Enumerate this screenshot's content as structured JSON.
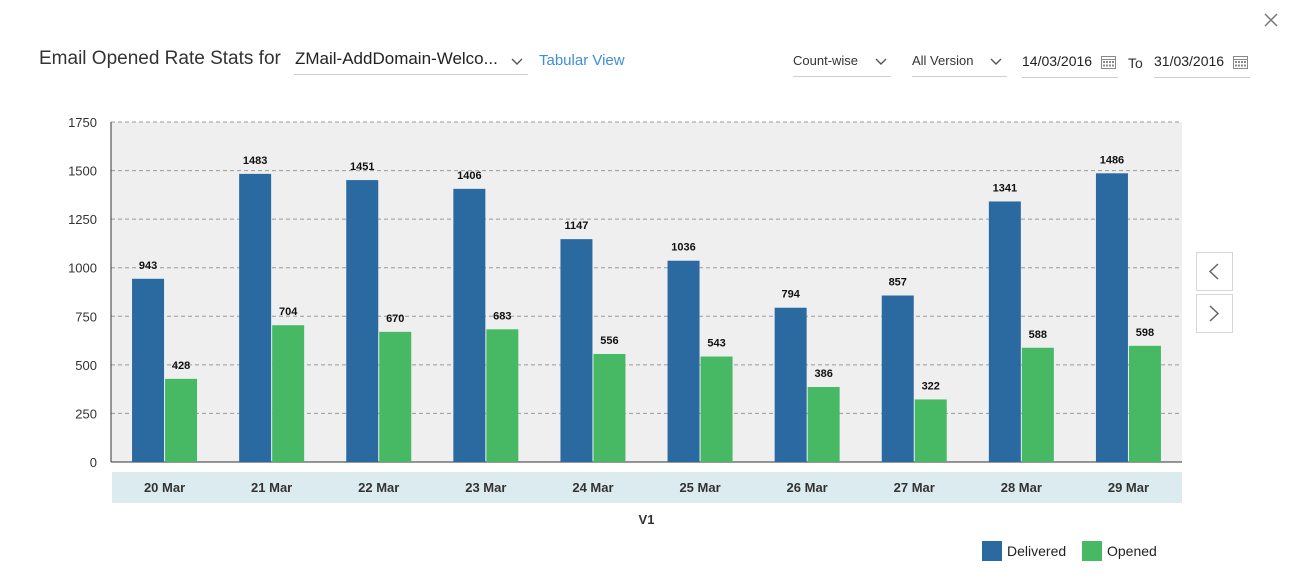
{
  "header": {
    "title": "Email Opened Rate Stats for",
    "campaign_value": "ZMail-AddDomain-Welco...",
    "tabular_link": "Tabular View",
    "mode_value": "Count-wise",
    "version_value": "All Version",
    "from_date": "14/03/2016",
    "to_label": "To",
    "to_date": "31/03/2016"
  },
  "colors": {
    "delivered": "#2a6aa0",
    "opened": "#47b965",
    "plot_bg": "#efefef",
    "xaxis_band": "#dcebf0",
    "link": "#3d8fd6"
  },
  "icons": {
    "close": "close-icon",
    "calendar": "calendar-icon",
    "prev": "chevron-left-icon",
    "next": "chevron-right-icon"
  },
  "chart_data": {
    "type": "bar",
    "categories": [
      "20 Mar",
      "21 Mar",
      "22 Mar",
      "23 Mar",
      "24 Mar",
      "25 Mar",
      "26 Mar",
      "27 Mar",
      "28 Mar",
      "29 Mar"
    ],
    "series": [
      {
        "name": "Delivered",
        "values": [
          943,
          1483,
          1451,
          1406,
          1147,
          1036,
          794,
          857,
          1341,
          1486
        ]
      },
      {
        "name": "Opened",
        "values": [
          428,
          704,
          670,
          683,
          556,
          543,
          386,
          322,
          588,
          598
        ]
      }
    ],
    "yticks": [
      "0",
      "250",
      "500",
      "750",
      "1000",
      "1250",
      "1500",
      "1750"
    ],
    "ylim": [
      0,
      1750
    ],
    "xlabel": "V1",
    "ylabel": "",
    "grid": true,
    "legend": "bottom-right",
    "data_labels": true
  }
}
